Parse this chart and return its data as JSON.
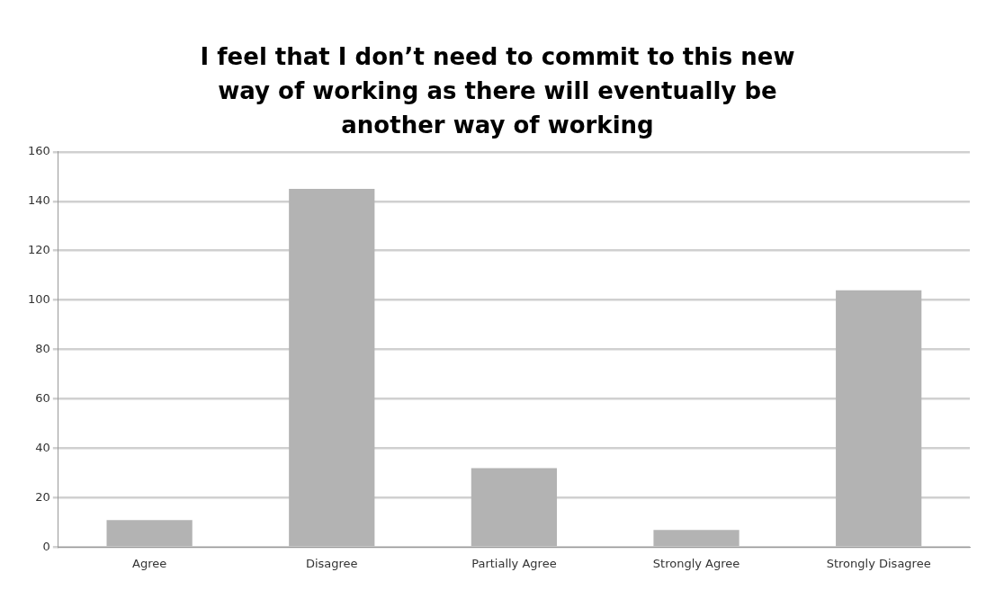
{
  "chart_data": {
    "type": "bar",
    "title": "I feel that I don’t need to commit to this new way of working as there will eventually be another way of working",
    "categories": [
      "Agree",
      "Disagree",
      "Partially Agree",
      "Strongly Agree",
      "Strongly Disagree"
    ],
    "values": [
      11,
      145,
      32,
      7,
      104
    ],
    "color": "#b3b3b3",
    "ylim": [
      0,
      160
    ],
    "yticks": [
      0,
      20,
      40,
      60,
      80,
      100,
      120,
      140,
      160
    ],
    "grid": "y",
    "legend": false
  }
}
